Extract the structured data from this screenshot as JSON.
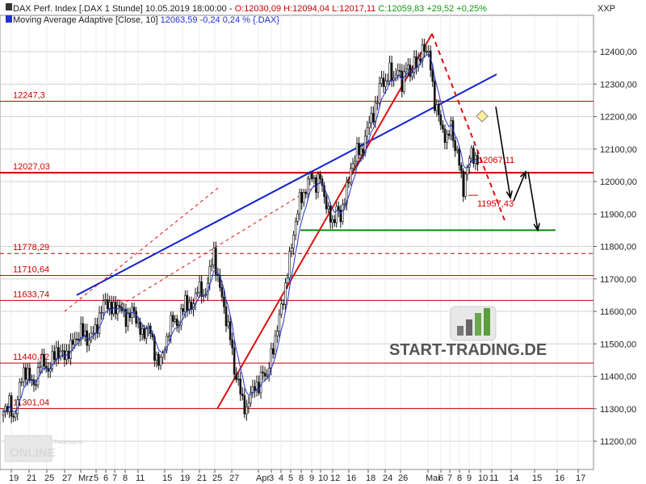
{
  "header": {
    "line1_prefix": "DAX Perf. Index [.DAX  1 Stunde] 10.05.2019 18:00:00 - ",
    "line1_ohlc": "O:12030,09 H:12094,04 L:12017,11 ",
    "line1_close": "C:12059,83 +29,52 +0,25%",
    "line2_prefix": "Moving Average Adaptive [Close, 10] ",
    "line2_value": "12063,59 -0,24 0,24 % {.DAX}",
    "axis_unit": "XXP"
  },
  "colors": {
    "price": "#111111",
    "ma": "#2233cc",
    "level": "#cc0000",
    "blue_trend": "#1122cc",
    "red_trend": "#dd1111",
    "support": "#118811",
    "grid": "#d0d0d0"
  },
  "watermark": {
    "brand": "START-TRADING.DE",
    "vendor": "ONLINE",
    "vendor_small": "Tradesignal"
  },
  "chart_data": {
    "type": "candlestick",
    "title": "DAX Perf. Index [.DAX  1 Stunde]",
    "y_axis": {
      "ticks": [
        11200,
        11300,
        11400,
        11500,
        11600,
        11700,
        11800,
        11900,
        12000,
        12100,
        12200,
        12300,
        12400
      ],
      "tick_labels": [
        "11200,00",
        "11300,00",
        "11400,00",
        "11500,00",
        "11600,00",
        "11700,00",
        "11800,00",
        "11900,00",
        "12000,00",
        "12100,00",
        "12200,00",
        "12300,00",
        "12400,00"
      ],
      "ylim": [
        11150,
        12500
      ]
    },
    "x_axis": {
      "tick_labels": [
        "19",
        "21",
        "25",
        "27",
        "Mrz",
        "5",
        "6",
        "7",
        "8",
        "11",
        "15",
        "19",
        "21",
        "25",
        "27",
        "Apr",
        "3",
        "4",
        "5",
        "8",
        "9",
        "10",
        "12",
        "16",
        "18",
        "24",
        "26",
        "Mai",
        "6",
        "7",
        "8",
        "9",
        "10",
        "11",
        "14",
        "15",
        "16",
        "17"
      ]
    },
    "horizontal_levels": [
      {
        "label": "12247,3",
        "value": 12247.3,
        "style": "solid"
      },
      {
        "label": "12027,03",
        "value": 12027.03,
        "style": "solid"
      },
      {
        "label": "11778,29",
        "value": 11778.29,
        "style": "dashed"
      },
      {
        "label": "11710,64",
        "value": 11710.64,
        "style": "solid"
      },
      {
        "label": "11633,74",
        "value": 11633.74,
        "style": "solid"
      },
      {
        "label": "11440,82",
        "value": 11440.82,
        "style": "solid"
      },
      {
        "label": "11301,04",
        "value": 11301.04,
        "style": "solid"
      }
    ],
    "annotations": [
      {
        "label": "12067,11",
        "value": 12067.11
      },
      {
        "label": "11957,43",
        "value": 11957.43
      }
    ],
    "price_path": [
      [
        0,
        11280
      ],
      [
        3,
        11330
      ],
      [
        5,
        11250
      ],
      [
        8,
        11380
      ],
      [
        12,
        11420
      ],
      [
        15,
        11360
      ],
      [
        18,
        11450
      ],
      [
        22,
        11420
      ],
      [
        26,
        11480
      ],
      [
        30,
        11460
      ],
      [
        34,
        11500
      ],
      [
        38,
        11540
      ],
      [
        42,
        11510
      ],
      [
        46,
        11560
      ],
      [
        50,
        11640
      ],
      [
        53,
        11600
      ],
      [
        56,
        11620
      ],
      [
        60,
        11580
      ],
      [
        64,
        11600
      ],
      [
        68,
        11520
      ],
      [
        71,
        11560
      ],
      [
        74,
        11470
      ],
      [
        77,
        11440
      ],
      [
        80,
        11520
      ],
      [
        83,
        11580
      ],
      [
        86,
        11560
      ],
      [
        89,
        11640
      ],
      [
        92,
        11600
      ],
      [
        95,
        11680
      ],
      [
        98,
        11640
      ],
      [
        101,
        11720
      ],
      [
        103,
        11780
      ],
      [
        105,
        11700
      ],
      [
        107,
        11640
      ],
      [
        109,
        11580
      ],
      [
        111,
        11520
      ],
      [
        113,
        11420
      ],
      [
        115,
        11380
      ],
      [
        117,
        11320
      ],
      [
        119,
        11300
      ],
      [
        121,
        11340
      ],
      [
        123,
        11380
      ],
      [
        125,
        11360
      ],
      [
        127,
        11420
      ],
      [
        129,
        11400
      ],
      [
        131,
        11460
      ],
      [
        133,
        11520
      ],
      [
        135,
        11580
      ],
      [
        137,
        11640
      ],
      [
        139,
        11720
      ],
      [
        141,
        11800
      ],
      [
        143,
        11880
      ],
      [
        145,
        11940
      ],
      [
        147,
        11960
      ],
      [
        149,
        12000
      ],
      [
        151,
        12020
      ],
      [
        153,
        11990
      ],
      [
        155,
        12010
      ],
      [
        157,
        11960
      ],
      [
        159,
        11900
      ],
      [
        161,
        11870
      ],
      [
        163,
        11920
      ],
      [
        165,
        11880
      ],
      [
        167,
        11960
      ],
      [
        169,
        12000
      ],
      [
        171,
        12060
      ],
      [
        173,
        12100
      ],
      [
        175,
        12080
      ],
      [
        177,
        12140
      ],
      [
        179,
        12180
      ],
      [
        181,
        12210
      ],
      [
        183,
        12250
      ],
      [
        185,
        12320
      ],
      [
        187,
        12300
      ],
      [
        189,
        12340
      ],
      [
        191,
        12320
      ],
      [
        193,
        12340
      ],
      [
        195,
        12300
      ],
      [
        197,
        12360
      ],
      [
        199,
        12320
      ],
      [
        201,
        12380
      ],
      [
        203,
        12350
      ],
      [
        205,
        12420
      ],
      [
        207,
        12400
      ],
      [
        209,
        12360
      ],
      [
        211,
        12240
      ],
      [
        213,
        12200
      ],
      [
        215,
        12160
      ],
      [
        217,
        12120
      ],
      [
        219,
        12180
      ],
      [
        221,
        12100
      ],
      [
        223,
        12060
      ],
      [
        225,
        11980
      ],
      [
        227,
        12040
      ],
      [
        229,
        12100
      ],
      [
        231,
        12060
      ],
      [
        233,
        12059
      ]
    ]
  }
}
